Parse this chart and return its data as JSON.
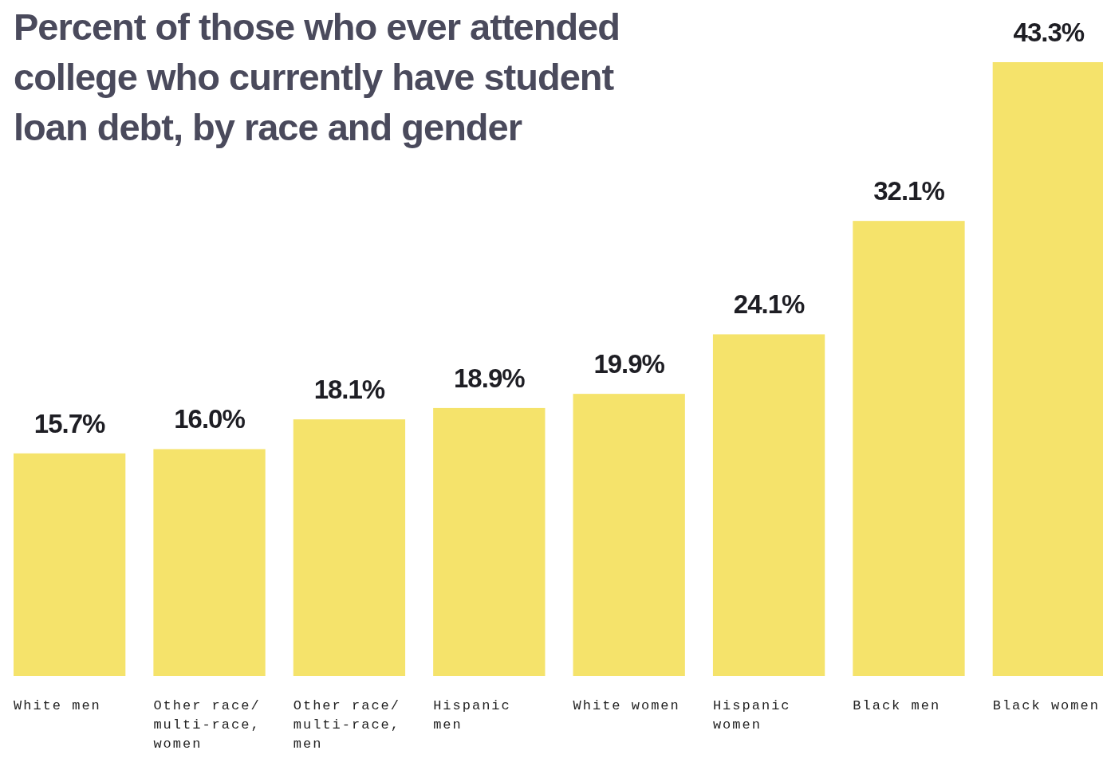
{
  "chart_data": {
    "type": "bar",
    "title": "Percent of those who ever attended college who currently have student loan debt, by race and gender",
    "categories": [
      "White men",
      "Other race/ multi-race, women",
      "Other race/ multi-race, men",
      "Hispanic men",
      "White women",
      "Hispanic women",
      "Black men",
      "Black women"
    ],
    "values": [
      15.7,
      16.0,
      18.1,
      18.9,
      19.9,
      24.1,
      32.1,
      43.3
    ],
    "value_labels": [
      "15.7%",
      "16.0%",
      "18.1%",
      "18.9%",
      "19.9%",
      "24.1%",
      "32.1%",
      "43.3%"
    ],
    "color": "#f5e36b"
  }
}
